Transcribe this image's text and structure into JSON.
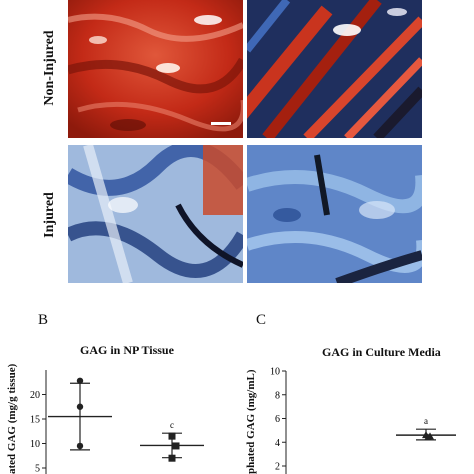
{
  "figure": {
    "row_labels": [
      "Non-Injured",
      "Injured"
    ],
    "panel_B_letter": "B",
    "panel_C_letter": "C",
    "colors": {
      "safranin_red": "#c8311c",
      "fast_green_blue": "#2b4f9c",
      "light_blue": "#7aa6d8"
    }
  },
  "chart_data": [
    {
      "type": "scatter",
      "title": "GAG in NP Tissue",
      "ylabel": "Sulphated GAG (mg/g tissue)",
      "ylabel_visible": "ated GAG (mg/g tissue)",
      "ylim": [
        5,
        25
      ],
      "yticks": [
        "5",
        "10",
        "15",
        "20"
      ],
      "series": [
        {
          "points": [
            22.8,
            17.5,
            9.5
          ],
          "mean": 15.5,
          "error": [
            8.7,
            22.3
          ],
          "marker": "circle",
          "annotation": ""
        },
        {
          "points": [
            11.5,
            9.5,
            7.0
          ],
          "mean": 9.6,
          "error": [
            7.1,
            12.1
          ],
          "marker": "square",
          "annotation": "c"
        }
      ]
    },
    {
      "type": "scatter",
      "title": "GAG in Culture Media",
      "ylabel": "Sulphated GAG (mg/mL)",
      "ylabel_visible": "phated GAG (mg/mL)",
      "ylim": [
        2,
        10
      ],
      "yticks": [
        "2",
        "4",
        "6",
        "8",
        "10"
      ],
      "series": [
        {
          "points": [
            4.6,
            4.4,
            4.5
          ],
          "mean": 4.6,
          "error": [
            4.2,
            5.1
          ],
          "marker": "triangle",
          "annotation": "a"
        }
      ]
    }
  ]
}
